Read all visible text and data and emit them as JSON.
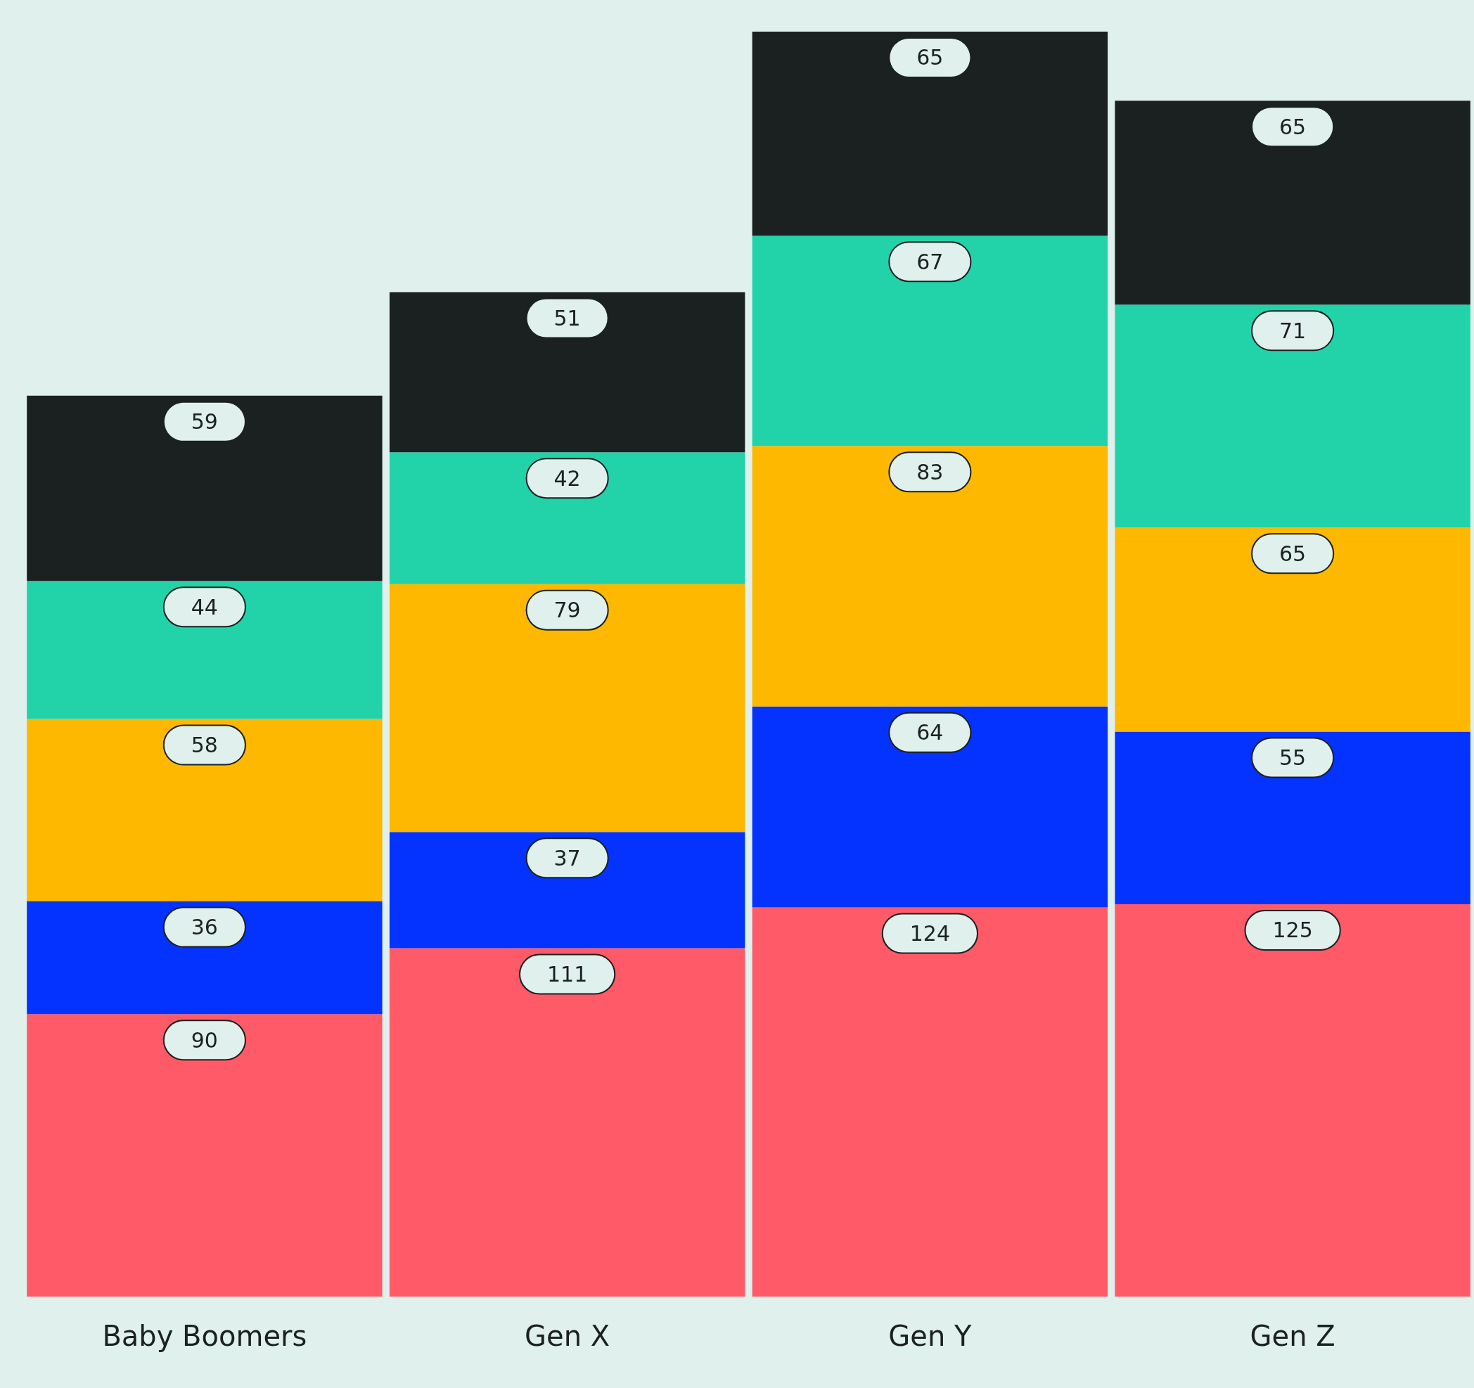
{
  "chart_data": {
    "type": "bar",
    "stacked": true,
    "data_labels": true,
    "categories": [
      "Baby Boomers",
      "Gen X",
      "Gen Y",
      "Gen Z"
    ],
    "series": [
      {
        "color": "#ff5a68",
        "values": [
          90,
          111,
          124,
          125
        ]
      },
      {
        "color": "#0433ff",
        "values": [
          36,
          37,
          64,
          55
        ]
      },
      {
        "color": "#ffb800",
        "values": [
          58,
          79,
          83,
          65
        ]
      },
      {
        "color": "#22d3aa",
        "values": [
          44,
          42,
          67,
          71
        ]
      },
      {
        "color": "#1b2121",
        "values": [
          59,
          51,
          65,
          65
        ]
      }
    ]
  }
}
